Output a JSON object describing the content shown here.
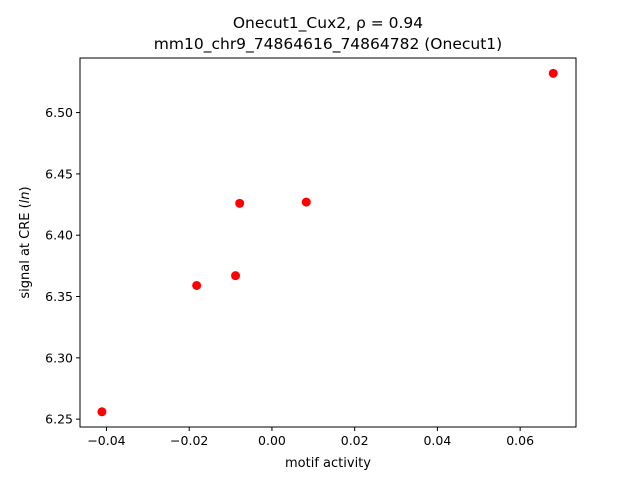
{
  "chart_data": {
    "type": "scatter",
    "title_line1": "Onecut1_Cux2, ρ = 0.94",
    "title_line2": "mm10_chr9_74864616_74864782 (Onecut1)",
    "xlabel": "motif activity",
    "ylabel_prefix": "signal at CRE (",
    "ylabel_italic": "ln",
    "ylabel_suffix": ")",
    "xlim": [
      -0.0464,
      0.0735
    ],
    "ylim": [
      6.2436,
      6.5445
    ],
    "x_ticks": [
      -0.04,
      -0.02,
      0.0,
      0.02,
      0.04,
      0.06
    ],
    "x_tick_labels": [
      "−0.04",
      "−0.02",
      "0.00",
      "0.02",
      "0.04",
      "0.06"
    ],
    "y_ticks": [
      6.25,
      6.3,
      6.35,
      6.4,
      6.45,
      6.5
    ],
    "y_tick_labels": [
      "6.25",
      "6.30",
      "6.35",
      "6.40",
      "6.45",
      "6.50"
    ],
    "grid": false,
    "marker_color": "#ff0000",
    "points": [
      {
        "x": -0.0411,
        "y": 6.256
      },
      {
        "x": -0.0182,
        "y": 6.359
      },
      {
        "x": -0.0088,
        "y": 6.367
      },
      {
        "x": -0.0078,
        "y": 6.426
      },
      {
        "x": 0.0083,
        "y": 6.427
      },
      {
        "x": 0.068,
        "y": 6.532
      }
    ]
  }
}
